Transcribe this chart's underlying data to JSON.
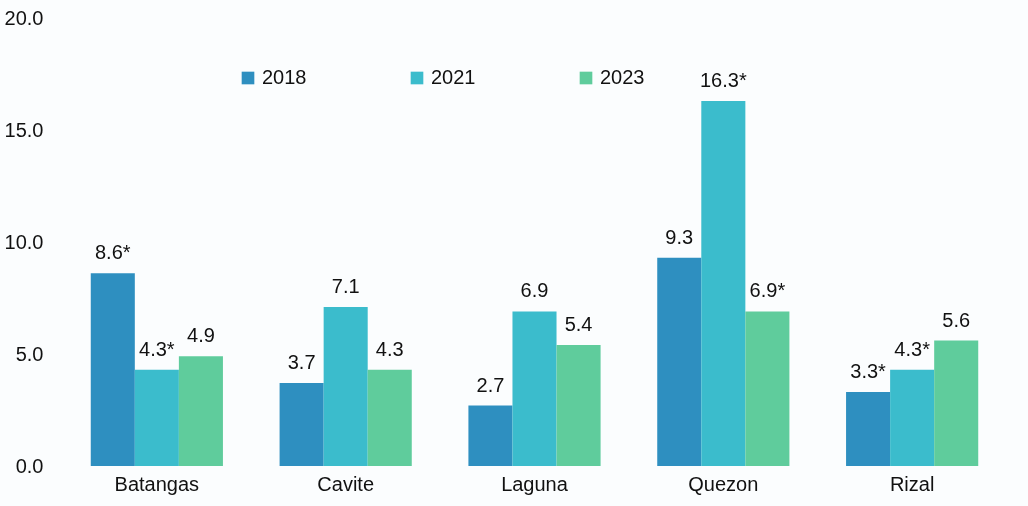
{
  "chart_data": {
    "type": "bar",
    "categories": [
      "Batangas",
      "Cavite",
      "Laguna",
      "Quezon",
      "Rizal"
    ],
    "series": [
      {
        "name": "2018",
        "color": "#2e8fc0",
        "values": [
          8.6,
          3.7,
          2.7,
          9.3,
          3.3
        ],
        "value_labels": [
          "8.6*",
          "3.7",
          "2.7",
          "9.3",
          "3.3*"
        ]
      },
      {
        "name": "2021",
        "color": "#3bbccc",
        "values": [
          4.3,
          7.1,
          6.9,
          16.3,
          4.3
        ],
        "value_labels": [
          "4.3*",
          "7.1",
          "6.9",
          "16.3*",
          "4.3*"
        ]
      },
      {
        "name": "2023",
        "color": "#5fcc9c",
        "values": [
          4.9,
          4.3,
          5.4,
          6.9,
          5.6
        ],
        "value_labels": [
          "4.9",
          "4.3",
          "5.4",
          "6.9*",
          "5.6"
        ]
      }
    ],
    "ylim": [
      0,
      20
    ],
    "yticks": [
      {
        "value": 0,
        "label": "0.0"
      },
      {
        "value": 5,
        "label": "5.0"
      },
      {
        "value": 10,
        "label": "10.0"
      },
      {
        "value": 15,
        "label": "15.0"
      },
      {
        "value": 20,
        "label": "20.0"
      }
    ],
    "legend": "top",
    "grid": false
  }
}
